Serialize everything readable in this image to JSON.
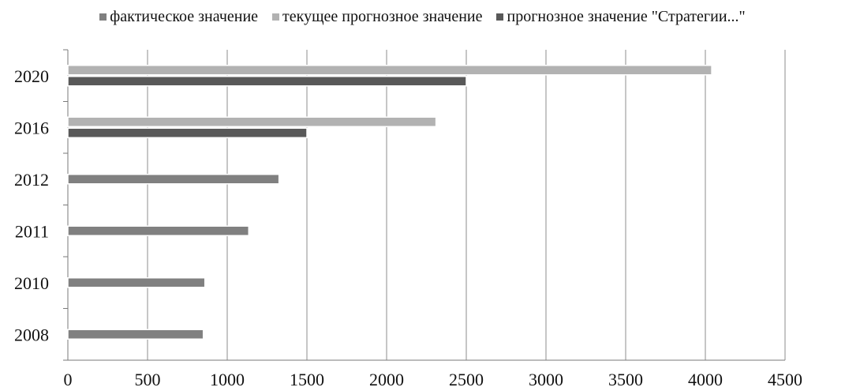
{
  "chart_data": {
    "type": "bar",
    "orientation": "horizontal",
    "title": "",
    "xlabel": "",
    "ylabel": "",
    "categories": [
      "2008",
      "2010",
      "2011",
      "2012",
      "2016",
      "2020"
    ],
    "series": [
      {
        "name": "фактическое значение",
        "color": "#808080",
        "values": [
          850,
          860,
          1135,
          1325,
          null,
          null
        ]
      },
      {
        "name": "текущее прогнозное значение",
        "color": "#b2b2b2",
        "values": [
          null,
          null,
          null,
          null,
          2310,
          4040
        ]
      },
      {
        "name": "прогнозное значение \"Стратегии...\"",
        "color": "#595959",
        "values": [
          null,
          null,
          null,
          null,
          1500,
          2500
        ]
      }
    ],
    "xlim": [
      0,
      4500
    ],
    "xticks": [
      0,
      500,
      1000,
      1500,
      2000,
      2500,
      3000,
      3500,
      4000,
      4500
    ],
    "grid": "vertical",
    "legend": "top"
  }
}
